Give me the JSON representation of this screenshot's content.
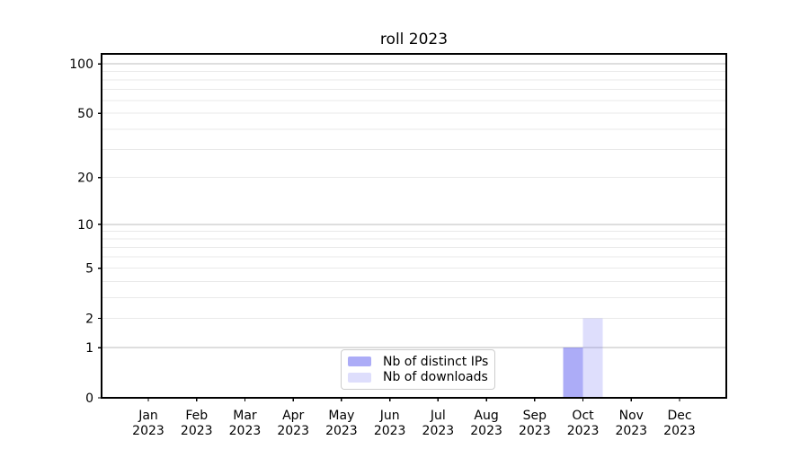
{
  "chart_data": {
    "type": "bar",
    "title": "roll 2023",
    "xlabel": "",
    "ylabel": "",
    "yscale": "log1p",
    "ylim": [
      0,
      100
    ],
    "grid": true,
    "legend_position": "lower center",
    "categories": [
      {
        "month": "Jan",
        "year": "2023"
      },
      {
        "month": "Feb",
        "year": "2023"
      },
      {
        "month": "Mar",
        "year": "2023"
      },
      {
        "month": "Apr",
        "year": "2023"
      },
      {
        "month": "May",
        "year": "2023"
      },
      {
        "month": "Jun",
        "year": "2023"
      },
      {
        "month": "Jul",
        "year": "2023"
      },
      {
        "month": "Aug",
        "year": "2023"
      },
      {
        "month": "Sep",
        "year": "2023"
      },
      {
        "month": "Oct",
        "year": "2023"
      },
      {
        "month": "Nov",
        "year": "2023"
      },
      {
        "month": "Dec",
        "year": "2023"
      }
    ],
    "series": [
      {
        "name": "Nb of distinct IPs",
        "color": "rgba(90,90,240,0.5)",
        "values": [
          0,
          0,
          0,
          0,
          0,
          0,
          0,
          0,
          0,
          1,
          0,
          0
        ]
      },
      {
        "name": "Nb of downloads",
        "color": "rgba(90,90,240,0.2)",
        "values": [
          0,
          0,
          0,
          0,
          0,
          0,
          0,
          0,
          0,
          2,
          0,
          0
        ]
      }
    ],
    "yticks": [
      0,
      1,
      2,
      5,
      10,
      20,
      50,
      100
    ],
    "major_gridlines": [
      1,
      10,
      100
    ],
    "minor_gridlines": [
      2,
      3,
      4,
      5,
      6,
      7,
      8,
      9,
      20,
      30,
      40,
      50,
      60,
      70,
      80,
      90
    ],
    "colors": {
      "major_grid": "#bdbdbd",
      "minor_grid": "#e9e9e9",
      "axis": "#000000",
      "text": "#000000",
      "legend_border": "#cccccc",
      "background": "#ffffff"
    }
  }
}
